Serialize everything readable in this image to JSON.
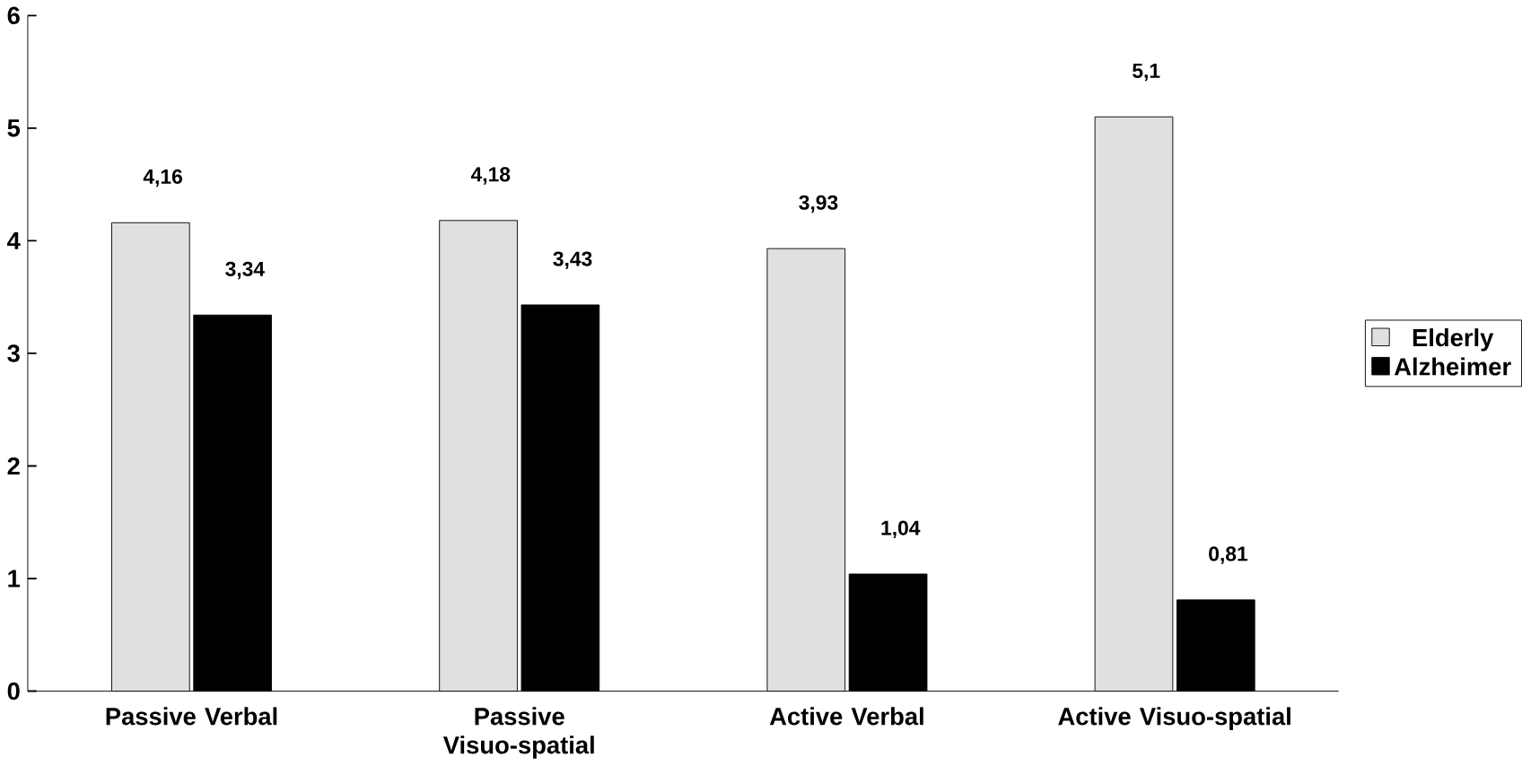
{
  "chart_data": {
    "type": "bar",
    "categories": [
      "Passive Verbal",
      "Passive Visuo-spatial",
      "Active Verbal",
      "Active Visuo-spatial"
    ],
    "series": [
      {
        "name": "Elderly",
        "color": "#e0e0e0",
        "values": [
          4.16,
          4.18,
          3.93,
          5.1
        ],
        "value_labels": [
          "4,16",
          "4,18",
          "3,93",
          "5,1"
        ]
      },
      {
        "name": "Alzheimer",
        "color": "#000000",
        "values": [
          3.34,
          3.43,
          1.04,
          0.81
        ],
        "value_labels": [
          "3,34",
          "3,43",
          "1,04",
          "0,81"
        ]
      }
    ],
    "ylim": [
      0,
      6
    ],
    "yticks": [
      0,
      1,
      2,
      3,
      4,
      5,
      6
    ],
    "legend": "right"
  }
}
